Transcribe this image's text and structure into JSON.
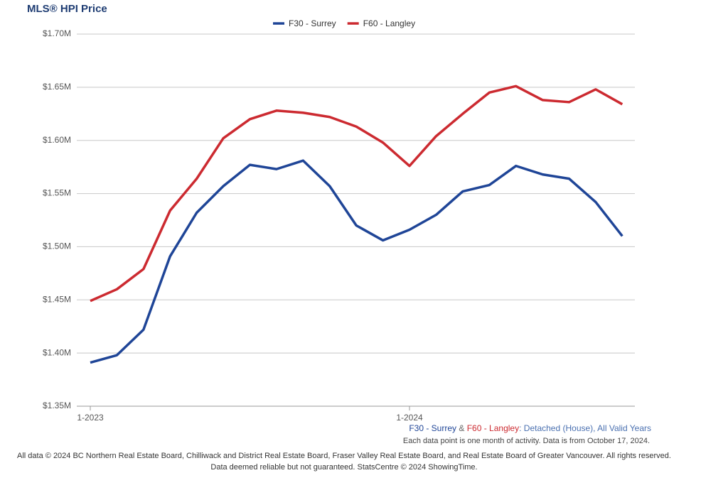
{
  "chart_data": {
    "type": "line",
    "title": "MLS® HPI Price",
    "categories": [
      "1-2023",
      null,
      null,
      null,
      null,
      null,
      null,
      null,
      null,
      null,
      null,
      null,
      "1-2024",
      null,
      null,
      null,
      null,
      null,
      null,
      null,
      null
    ],
    "series": [
      {
        "name": "F30 - Surrey",
        "color": "#1f4597",
        "values": [
          1391000,
          1398000,
          1422000,
          1491000,
          1532000,
          1557000,
          1577000,
          1573000,
          1581000,
          1557000,
          1520000,
          1506000,
          1516000,
          1530000,
          1552000,
          1558000,
          1576000,
          1568000,
          1564000,
          1542000,
          1510000
        ]
      },
      {
        "name": "F60 - Langley",
        "color": "#cc2a30",
        "values": [
          1449000,
          1460000,
          1479000,
          1534000,
          1564000,
          1602000,
          1620000,
          1628000,
          1626000,
          1622000,
          1613000,
          1598000,
          1576000,
          1604000,
          1625000,
          1645000,
          1651000,
          1638000,
          1636000,
          1648000,
          1634000
        ]
      }
    ],
    "ylim": [
      1350000,
      1700000
    ],
    "yticks": [
      {
        "value": 1350000,
        "label": "$1.35M"
      },
      {
        "value": 1400000,
        "label": "$1.40M"
      },
      {
        "value": 1450000,
        "label": "$1.45M"
      },
      {
        "value": 1500000,
        "label": "$1.50M"
      },
      {
        "value": 1550000,
        "label": "$1.55M"
      },
      {
        "value": 1600000,
        "label": "$1.60M"
      },
      {
        "value": 1650000,
        "label": "$1.65M"
      },
      {
        "value": 1700000,
        "label": "$1.70M"
      }
    ],
    "grid": true,
    "legend": "top",
    "caption_joiner": "&",
    "caption_suffix": ": Detached (House), All Valid Years",
    "note": "Each data point is one month of activity. Data is from October 17, 2024.",
    "footer": [
      "All data © 2024 BC Northern Real Estate Board, Chilliwack and District Real Estate Board, Fraser Valley Real Estate Board, and Real Estate Board of Greater Vancouver. All rights reserved.",
      "Data deemed reliable but not guaranteed. StatsCentre © 2024 ShowingTime."
    ]
  }
}
